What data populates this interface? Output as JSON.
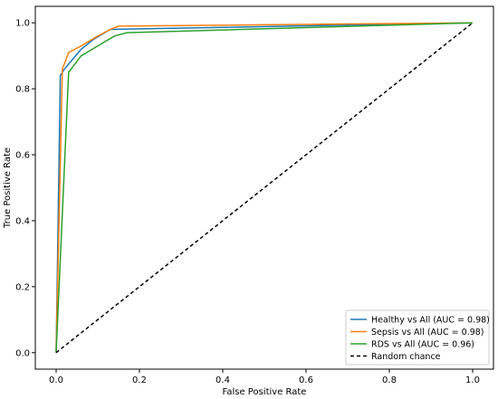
{
  "chart_data": {
    "type": "line",
    "title": "",
    "xlabel": "False Positive Rate",
    "ylabel": "True Positive Rate",
    "xlim": [
      -0.05,
      1.05
    ],
    "ylim": [
      -0.05,
      1.05
    ],
    "xticks": [
      0.0,
      0.2,
      0.4,
      0.6,
      0.8,
      1.0
    ],
    "yticks": [
      0.0,
      0.2,
      0.4,
      0.6,
      0.8,
      1.0
    ],
    "xtick_labels": [
      "0.0",
      "0.2",
      "0.4",
      "0.6",
      "0.8",
      "1.0"
    ],
    "ytick_labels": [
      "0.0",
      "0.2",
      "0.4",
      "0.6",
      "0.8",
      "1.0"
    ],
    "grid": false,
    "legend_position": "bottom-right",
    "series": [
      {
        "name": "Healthy vs All (AUC = 0.98)",
        "color": "#1f77b4",
        "style": "solid",
        "x": [
          0.0,
          0.01,
          0.02,
          0.04,
          0.06,
          0.09,
          0.13,
          1.0
        ],
        "y": [
          0.0,
          0.84,
          0.86,
          0.89,
          0.92,
          0.95,
          0.98,
          1.0
        ]
      },
      {
        "name": "Sepsis vs All (AUC = 0.98)",
        "color": "#ff7f0e",
        "style": "solid",
        "x": [
          0.0,
          0.015,
          0.03,
          0.06,
          0.1,
          0.13,
          0.15,
          1.0
        ],
        "y": [
          0.0,
          0.86,
          0.91,
          0.93,
          0.96,
          0.98,
          0.99,
          1.0
        ]
      },
      {
        "name": "RDS vs All (AUC = 0.96)",
        "color": "#2ca02c",
        "style": "solid",
        "x": [
          0.0,
          0.03,
          0.06,
          0.1,
          0.14,
          0.17,
          1.0
        ],
        "y": [
          0.0,
          0.85,
          0.9,
          0.93,
          0.96,
          0.97,
          1.0
        ]
      },
      {
        "name": "Random chance",
        "color": "#000000",
        "style": "dashed",
        "x": [
          0.0,
          1.0
        ],
        "y": [
          0.0,
          1.0
        ]
      }
    ]
  }
}
